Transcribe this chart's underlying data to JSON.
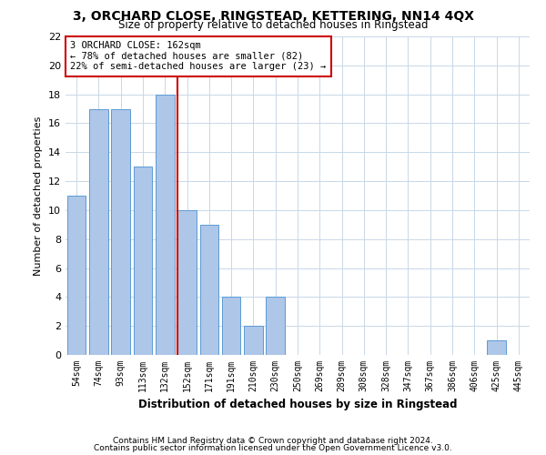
{
  "title": "3, ORCHARD CLOSE, RINGSTEAD, KETTERING, NN14 4QX",
  "subtitle": "Size of property relative to detached houses in Ringstead",
  "xlabel": "Distribution of detached houses by size in Ringstead",
  "ylabel": "Number of detached properties",
  "categories": [
    "54sqm",
    "74sqm",
    "93sqm",
    "113sqm",
    "132sqm",
    "152sqm",
    "171sqm",
    "191sqm",
    "210sqm",
    "230sqm",
    "250sqm",
    "269sqm",
    "289sqm",
    "308sqm",
    "328sqm",
    "347sqm",
    "367sqm",
    "386sqm",
    "406sqm",
    "425sqm",
    "445sqm"
  ],
  "values": [
    11,
    17,
    17,
    13,
    18,
    10,
    9,
    4,
    2,
    4,
    0,
    0,
    0,
    0,
    0,
    0,
    0,
    0,
    0,
    1,
    0
  ],
  "bar_color": "#aec6e8",
  "bar_edge_color": "#5b9bd5",
  "highlight_line_color": "#cc0000",
  "highlight_bin_index": 5,
  "annotation_line1": "3 ORCHARD CLOSE: 162sqm",
  "annotation_line2": "← 78% of detached houses are smaller (82)",
  "annotation_line3": "22% of semi-detached houses are larger (23) →",
  "annotation_box_color": "#ffffff",
  "annotation_box_edge": "#cc0000",
  "ylim": [
    0,
    22
  ],
  "yticks": [
    0,
    2,
    4,
    6,
    8,
    10,
    12,
    14,
    16,
    18,
    20,
    22
  ],
  "footer1": "Contains HM Land Registry data © Crown copyright and database right 2024.",
  "footer2": "Contains public sector information licensed under the Open Government Licence v3.0.",
  "bg_color": "#ffffff",
  "grid_color": "#c8d8e8"
}
